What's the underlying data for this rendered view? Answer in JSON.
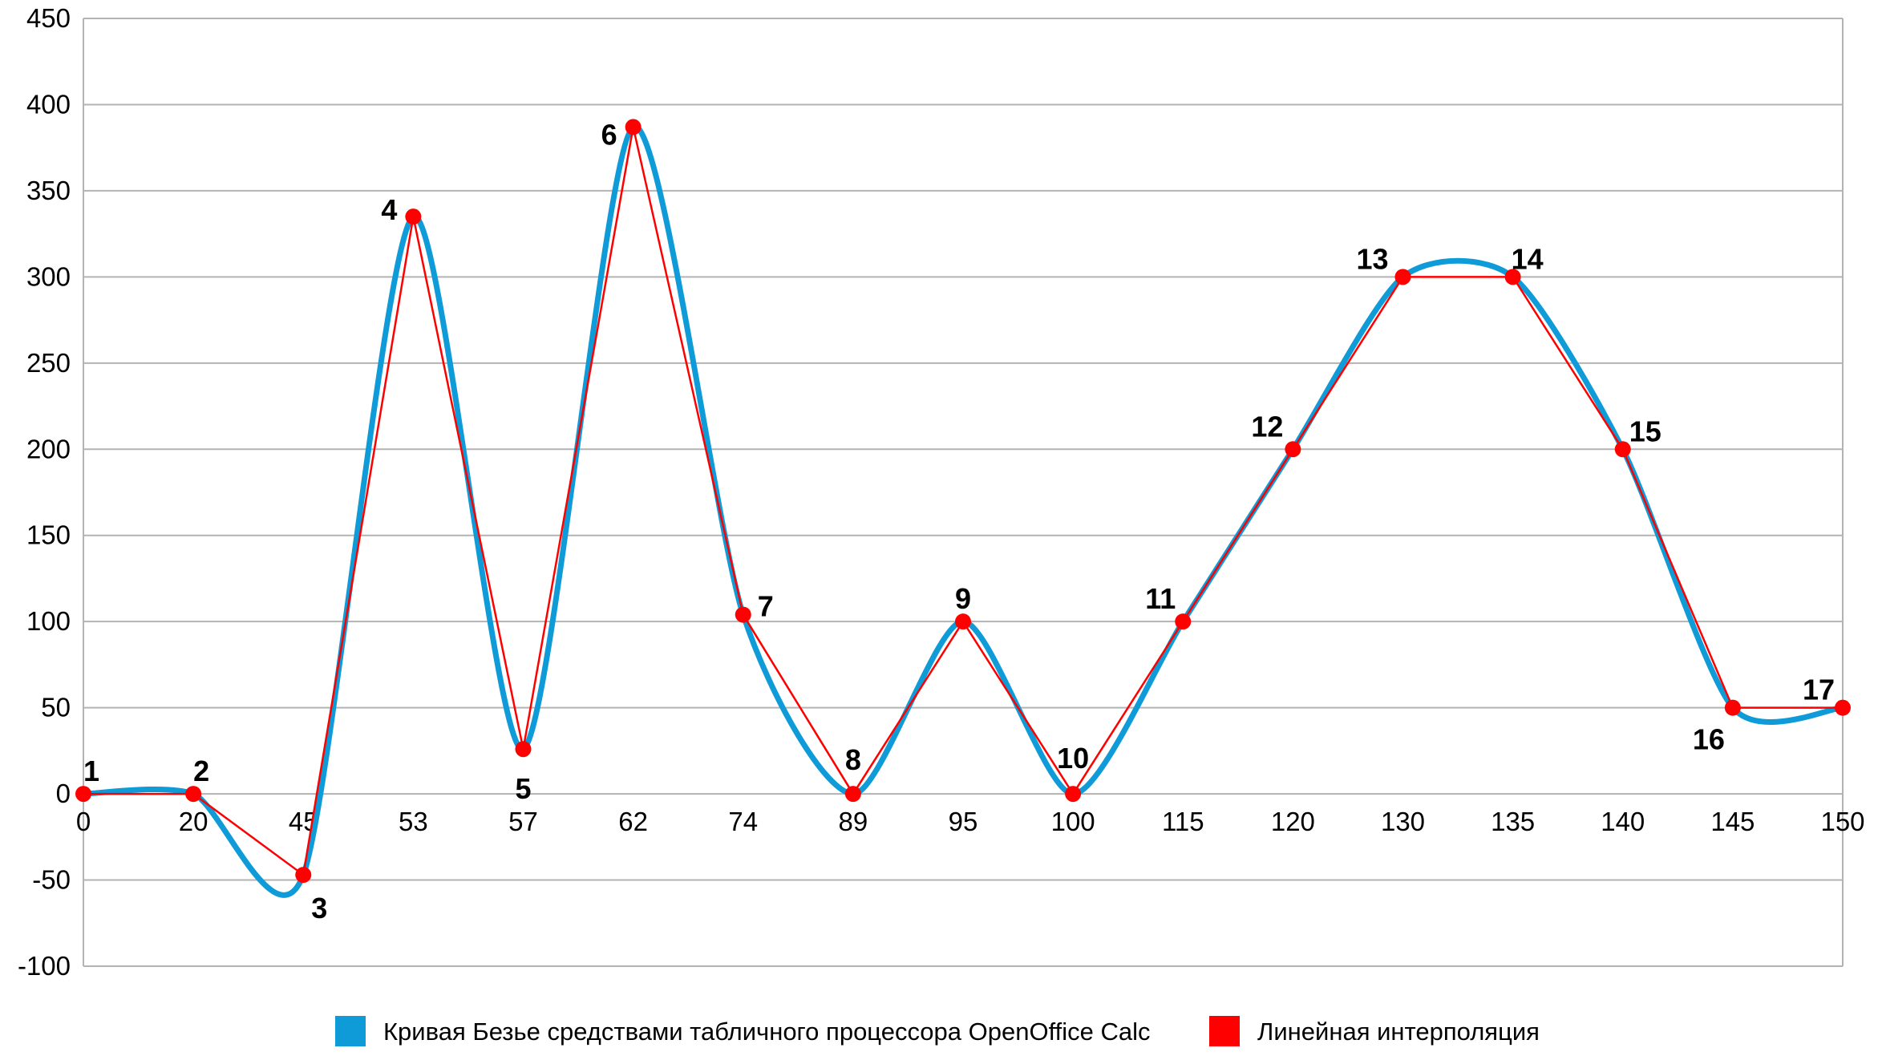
{
  "chart_data": {
    "type": "line",
    "categories": [
      "0",
      "20",
      "45",
      "53",
      "57",
      "62",
      "74",
      "89",
      "95",
      "100",
      "115",
      "120",
      "130",
      "135",
      "140",
      "145",
      "150"
    ],
    "ylim": [
      -100,
      450
    ],
    "yticks": [
      -100,
      -50,
      0,
      50,
      100,
      150,
      200,
      250,
      300,
      350,
      400,
      450
    ],
    "grid": true,
    "legend_position": "bottom",
    "point_labels": [
      "1",
      "2",
      "3",
      "4",
      "5",
      "6",
      "7",
      "8",
      "9",
      "10",
      "11",
      "12",
      "13",
      "14",
      "15",
      "16",
      "17"
    ],
    "series": [
      {
        "name": "Кривая Безье средствами табличного процессора OpenOffice Calc",
        "style": "smooth",
        "color": "#0f9bd7",
        "values": [
          0,
          0,
          -47,
          335,
          26,
          387,
          104,
          0,
          100,
          0,
          100,
          200,
          300,
          300,
          200,
          50,
          50
        ]
      },
      {
        "name": "Линейная интерполяция",
        "style": "straight",
        "color": "#ff0000",
        "values": [
          0,
          0,
          -47,
          335,
          26,
          387,
          104,
          0,
          100,
          0,
          100,
          200,
          300,
          300,
          200,
          50,
          50
        ]
      }
    ]
  }
}
